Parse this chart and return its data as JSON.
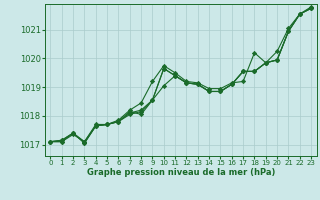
{
  "title": "Graphe pression niveau de la mer (hPa)",
  "background_color": "#cce8e8",
  "grid_color": "#aacccc",
  "line_color": "#1a6b2a",
  "xlim": [
    -0.5,
    23.5
  ],
  "ylim": [
    1016.6,
    1021.9
  ],
  "yticks": [
    1017,
    1018,
    1019,
    1020,
    1021
  ],
  "xticks": [
    0,
    1,
    2,
    3,
    4,
    5,
    6,
    7,
    8,
    9,
    10,
    11,
    12,
    13,
    14,
    15,
    16,
    17,
    18,
    19,
    20,
    21,
    22,
    23
  ],
  "xtick_labels": [
    "0",
    "1",
    "2",
    "3",
    "4",
    "5",
    "6",
    "7",
    "8",
    "9",
    "10",
    "11",
    "12",
    "13",
    "14",
    "15",
    "16",
    "17",
    "18",
    "19",
    "20",
    "21",
    "22",
    "23"
  ],
  "series": [
    [
      1017.1,
      1017.1,
      1017.4,
      1017.1,
      1017.7,
      1017.7,
      1017.85,
      1018.2,
      1018.45,
      1019.2,
      1019.75,
      1019.5,
      1019.2,
      1019.15,
      1018.95,
      1018.95,
      1019.15,
      1019.2,
      1020.2,
      1019.85,
      1020.25,
      1021.05,
      1021.55,
      1021.8
    ],
    [
      1017.1,
      1017.15,
      1017.4,
      1017.05,
      1017.65,
      1017.7,
      1017.8,
      1018.15,
      1018.05,
      1018.55,
      1019.05,
      1019.4,
      1019.15,
      1019.1,
      1018.85,
      1018.85,
      1019.1,
      1019.55,
      1019.55,
      1019.85,
      1019.95,
      1020.95,
      1021.55,
      1021.75
    ],
    [
      1017.1,
      1017.15,
      1017.4,
      1017.05,
      1017.65,
      1017.7,
      1017.8,
      1018.05,
      1018.15,
      1018.55,
      1019.65,
      1019.4,
      1019.15,
      1019.1,
      1018.85,
      1018.85,
      1019.1,
      1019.55,
      1019.55,
      1019.85,
      1019.95,
      1020.95,
      1021.55,
      1021.75
    ],
    [
      1017.1,
      1017.1,
      1017.35,
      1017.1,
      1017.65,
      1017.7,
      1017.8,
      1018.1,
      1018.2,
      1018.55,
      1019.65,
      1019.4,
      1019.15,
      1019.1,
      1018.85,
      1018.85,
      1019.1,
      1019.55,
      1019.55,
      1019.85,
      1019.95,
      1020.95,
      1021.55,
      1021.75
    ]
  ]
}
